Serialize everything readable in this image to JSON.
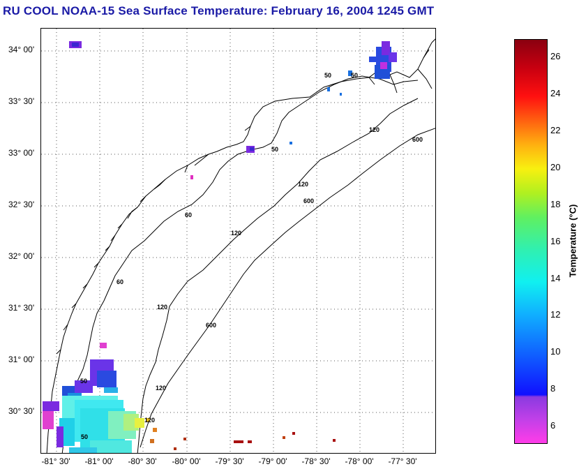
{
  "title": "RU COOL  NOAA-15  Sea Surface Temperature:  February 16, 2004 1245 GMT",
  "map": {
    "lat_ticks": [
      "34° 00'",
      "33° 30'",
      "33° 00'",
      "32° 30'",
      "32° 00'",
      "31° 30'",
      "31° 00'",
      "30° 30'"
    ],
    "lon_ticks": [
      "-81° 30'",
      "-81° 00'",
      "-80° 30'",
      "-80° 00'",
      "-79° 30'",
      "-79° 00'",
      "-78° 30'",
      "-78° 00'",
      "-77° 30'"
    ],
    "contour_labels": [
      "50",
      "50",
      "60",
      "60",
      "50",
      "50",
      "50",
      "120",
      "120",
      "120",
      "120",
      "120",
      "120",
      "600",
      "600",
      "600"
    ],
    "grid": "dotted"
  },
  "colorbar": {
    "label": "Temperature (°C)",
    "ticks": [
      "26",
      "24",
      "22",
      "20",
      "18",
      "16",
      "14",
      "12",
      "10",
      "8",
      "6"
    ],
    "range": [
      5,
      27
    ]
  }
}
